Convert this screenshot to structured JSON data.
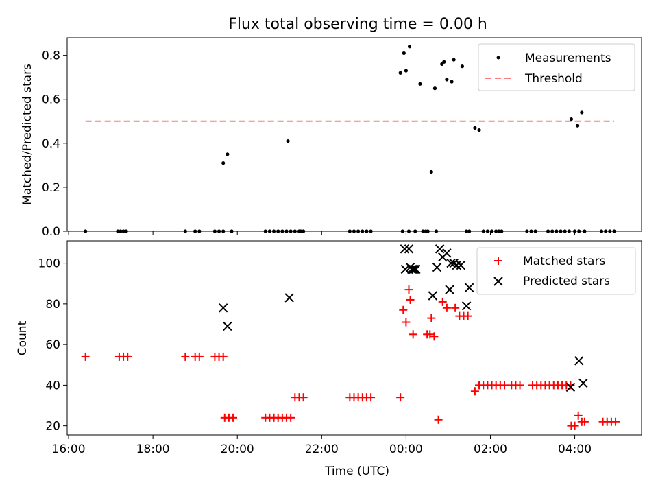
{
  "title": "Flux total observing time = 0.00 h",
  "chart_data": [
    {
      "type": "scatter",
      "panel": "top",
      "ylabel": "Matched/Predicted stars",
      "ylim": [
        0,
        0.88
      ],
      "xlim": [
        "15:58",
        "29:35"
      ],
      "yticks": [
        "0.0",
        "0.2",
        "0.4",
        "0.6",
        "0.8"
      ],
      "grid": false,
      "legend_position": "top-right",
      "series": [
        {
          "name": "Measurements",
          "color": "#000000",
          "marker": "dot",
          "x": [
            "16:24",
            "17:10",
            "17:14",
            "17:18",
            "17:22",
            "18:46",
            "19:00",
            "19:06",
            "19:28",
            "19:34",
            "19:40",
            "19:40",
            "19:46",
            "19:52",
            "20:40",
            "20:46",
            "20:52",
            "20:58",
            "21:04",
            "21:10",
            "21:16",
            "21:22",
            "21:28",
            "21:12",
            "21:34",
            "21:30",
            "22:40",
            "22:46",
            "22:52",
            "22:58",
            "23:04",
            "23:10",
            "23:52",
            "23:55",
            "24:00",
            "24:04",
            "23:57",
            "24:05",
            "24:13",
            "24:20",
            "24:24",
            "24:28",
            "24:31",
            "24:36",
            "24:41",
            "24:43",
            "24:51",
            "24:54",
            "24:58",
            "25:05",
            "25:08",
            "25:20",
            "25:26",
            "25:30",
            "25:38",
            "25:44",
            "25:50",
            "25:56",
            "26:02",
            "26:08",
            "26:12",
            "26:16",
            "26:52",
            "26:58",
            "27:04",
            "27:22",
            "27:28",
            "27:34",
            "27:40",
            "27:46",
            "27:52",
            "27:55",
            "28:00",
            "28:04",
            "28:06",
            "28:10",
            "28:14",
            "28:38",
            "28:44",
            "28:50",
            "28:56"
          ],
          "y": [
            0,
            0,
            0,
            0,
            0,
            0,
            0,
            0,
            0,
            0,
            0,
            0.31,
            0.35,
            0,
            0,
            0,
            0,
            0,
            0,
            0,
            0,
            0,
            0,
            0.41,
            0,
            0,
            0,
            0,
            0,
            0,
            0,
            0,
            0.72,
            0,
            0.73,
            0,
            0.81,
            0.84,
            0,
            0.67,
            0,
            0,
            0,
            0.27,
            0.65,
            0,
            0.76,
            0.77,
            0.69,
            0.68,
            0.78,
            0.75,
            0,
            0,
            0.47,
            0.46,
            0,
            0,
            0,
            0,
            0,
            0,
            0,
            0,
            0,
            0,
            0,
            0,
            0,
            0,
            0,
            0.51,
            0,
            0.48,
            0,
            0.54,
            0,
            0,
            0,
            0,
            0
          ]
        },
        {
          "name": "Threshold",
          "color": "#ff7b7b",
          "style": "dashed",
          "x": [
            "16:24",
            "28:56"
          ],
          "y": [
            0.5,
            0.5
          ]
        }
      ]
    },
    {
      "type": "scatter",
      "panel": "bottom",
      "xlabel": "Time (UTC)",
      "ylabel": "Count",
      "ylim": [
        15.5,
        111
      ],
      "xlim": [
        "15:58",
        "29:35"
      ],
      "xticks": [
        "16:00",
        "18:00",
        "20:00",
        "22:00",
        "00:00",
        "02:00",
        "04:00"
      ],
      "yticks": [
        "20",
        "40",
        "60",
        "80",
        "100"
      ],
      "grid": false,
      "legend_position": "top-right",
      "series": [
        {
          "name": "Matched stars",
          "color": "#ff0000",
          "marker": "plus",
          "x": [
            "16:24",
            "17:12",
            "17:18",
            "17:24",
            "18:46",
            "19:00",
            "19:06",
            "19:28",
            "19:34",
            "19:40",
            "19:42",
            "19:48",
            "19:54",
            "20:40",
            "20:46",
            "20:52",
            "20:58",
            "21:04",
            "21:10",
            "21:16",
            "21:22",
            "21:28",
            "21:34",
            "22:40",
            "22:46",
            "22:52",
            "22:58",
            "23:04",
            "23:10",
            "23:52",
            "23:56",
            "24:00",
            "24:04",
            "24:06",
            "24:10",
            "24:30",
            "24:34",
            "24:40",
            "24:46",
            "24:52",
            "24:58",
            "24:36",
            "25:10",
            "25:16",
            "25:22",
            "25:28",
            "25:38",
            "25:44",
            "25:50",
            "25:56",
            "26:02",
            "26:08",
            "26:14",
            "26:20",
            "26:30",
            "26:36",
            "26:42",
            "27:00",
            "27:06",
            "27:12",
            "27:18",
            "27:24",
            "27:30",
            "27:36",
            "27:42",
            "27:48",
            "27:54",
            "27:55",
            "28:00",
            "28:05",
            "28:10",
            "28:14",
            "28:40",
            "28:46",
            "28:52",
            "28:58"
          ],
          "y": [
            54,
            54,
            54,
            54,
            54,
            54,
            54,
            54,
            54,
            54,
            24,
            24,
            24,
            24,
            24,
            24,
            24,
            24,
            24,
            24,
            34,
            34,
            34,
            34,
            34,
            34,
            34,
            34,
            34,
            34,
            77,
            71,
            87,
            82,
            65,
            65,
            65,
            64,
            23,
            81,
            78,
            73,
            78,
            74,
            74,
            74,
            37,
            40,
            40,
            40,
            40,
            40,
            40,
            40,
            40,
            40,
            40,
            40,
            40,
            40,
            40,
            40,
            40,
            40,
            40,
            40,
            40,
            20,
            20,
            25,
            22,
            22,
            22,
            22,
            22,
            22
          ]
        },
        {
          "name": "Predicted stars",
          "color": "#000000",
          "marker": "x",
          "x": [
            "19:40",
            "19:46",
            "21:14",
            "23:58",
            "23:59",
            "24:04",
            "24:06",
            "24:08",
            "24:10",
            "24:12",
            "24:14",
            "24:38",
            "24:44",
            "24:48",
            "24:52",
            "24:58",
            "25:02",
            "25:04",
            "25:08",
            "25:12",
            "25:18",
            "25:26",
            "25:30",
            "27:54",
            "28:06",
            "28:12"
          ],
          "y": [
            78,
            69,
            83,
            107,
            97,
            107,
            98,
            97,
            97,
            97,
            97,
            84,
            98,
            107,
            103,
            105,
            87,
            100,
            100,
            99,
            99,
            79,
            88,
            39,
            52,
            41
          ]
        }
      ]
    }
  ]
}
